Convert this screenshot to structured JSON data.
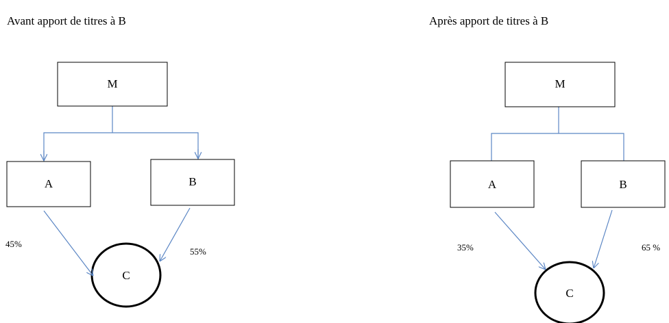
{
  "diagrams": [
    {
      "title": "Avant apport de titres à B",
      "nodes": [
        {
          "label": "M"
        },
        {
          "label": "A"
        },
        {
          "label": "B"
        },
        {
          "label": "C"
        }
      ],
      "edge_labels": [
        "45%",
        "55%"
      ]
    },
    {
      "title": "Après apport de titres à B",
      "nodes": [
        {
          "label": "M"
        },
        {
          "label": "A"
        },
        {
          "label": "B"
        },
        {
          "label": "C"
        }
      ],
      "edge_labels": [
        "35%",
        "65 %"
      ]
    }
  ]
}
